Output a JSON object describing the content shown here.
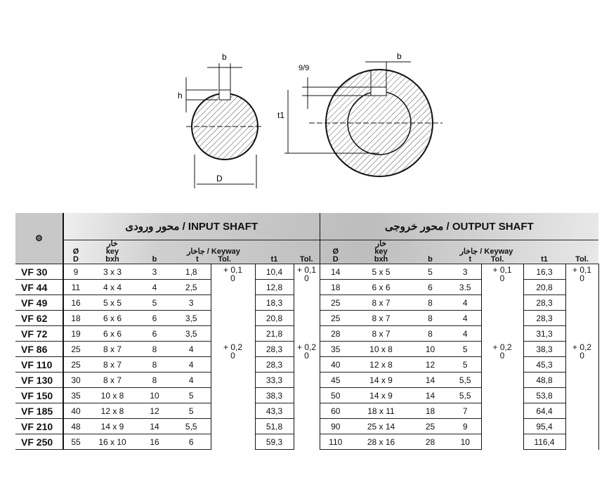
{
  "drawing": {
    "labels": {
      "b_in": "b",
      "h": "h",
      "D": "D",
      "t1": "t1",
      "b_out": "b",
      "t_out": "9/9"
    }
  },
  "input_shaft": {
    "title": "محور ورودی / INPUT SHAFT",
    "keyway": "جاخار / Keyway",
    "col_d": [
      "Ø",
      "D"
    ],
    "col_key": [
      "خار",
      "key",
      "bxh"
    ],
    "col_b": "b",
    "col_t": "t",
    "col_tol": "Tol.",
    "col_t1": "t1",
    "col_tol2": "Tol.",
    "tol_a": [
      "+ 0,1",
      "0"
    ],
    "tol_b": [
      "+ 0,2",
      "0"
    ]
  },
  "output_shaft": {
    "title": "محور خروجی / OUTPUT SHAFT",
    "keyway": "جاخار / Keyway",
    "col_d": [
      "Ø",
      "D"
    ],
    "col_key": [
      "خار",
      "key",
      "bxh"
    ],
    "col_b": "b",
    "col_t": "t",
    "col_tol": "Tol.",
    "col_t1": "t1",
    "col_tol2": "Tol.",
    "tol_a": [
      "+ 0,1",
      "0"
    ],
    "tol_b": [
      "+ 0,2",
      "0"
    ]
  },
  "rows": [
    {
      "model": "VF 30",
      "in": [
        "9",
        "3 x 3",
        "3",
        "1,8",
        "10,4"
      ],
      "out": [
        "14",
        "5 x 5",
        "5",
        "3",
        "16,3"
      ]
    },
    {
      "model": "VF 44",
      "in": [
        "11",
        "4 x 4",
        "4",
        "2,5",
        "12,8"
      ],
      "out": [
        "18",
        "6 x 6",
        "6",
        "3.5",
        "20,8"
      ]
    },
    {
      "model": "VF 49",
      "in": [
        "16",
        "5 x 5",
        "5",
        "3",
        "18,3"
      ],
      "out": [
        "25",
        "8 x 7",
        "8",
        "4",
        "28,3"
      ]
    },
    {
      "model": "VF 62",
      "in": [
        "18",
        "6 x 6",
        "6",
        "3,5",
        "20,8"
      ],
      "out": [
        "25",
        "8 x 7",
        "8",
        "4",
        "28,3"
      ]
    },
    {
      "model": "VF 72",
      "in": [
        "19",
        "6 x 6",
        "6",
        "3,5",
        "21,8"
      ],
      "out": [
        "28",
        "8 x 7",
        "8",
        "4",
        "31,3"
      ]
    },
    {
      "model": "VF 86",
      "in": [
        "25",
        "8 x 7",
        "8",
        "4",
        "28,3"
      ],
      "out": [
        "35",
        "10 x 8",
        "10",
        "5",
        "38,3"
      ]
    },
    {
      "model": "VF 110",
      "in": [
        "25",
        "8 x 7",
        "8",
        "4",
        "28,3"
      ],
      "out": [
        "40",
        "12 x 8",
        "12",
        "5",
        "45,3"
      ]
    },
    {
      "model": "VF 130",
      "in": [
        "30",
        "8 x 7",
        "8",
        "4",
        "33,3"
      ],
      "out": [
        "45",
        "14 x 9",
        "14",
        "5,5",
        "48,8"
      ]
    },
    {
      "model": "VF 150",
      "in": [
        "35",
        "10 x 8",
        "10",
        "5",
        "38,3"
      ],
      "out": [
        "50",
        "14 x 9",
        "14",
        "5,5",
        "53,8"
      ]
    },
    {
      "model": "VF 185",
      "in": [
        "40",
        "12 x 8",
        "12",
        "5",
        "43,3"
      ],
      "out": [
        "60",
        "18 x 11",
        "18",
        "7",
        "64,4"
      ]
    },
    {
      "model": "VF 210",
      "in": [
        "48",
        "14 x 9",
        "14",
        "5,5",
        "51,8"
      ],
      "out": [
        "90",
        "25 x 14",
        "25",
        "9",
        "95,4"
      ]
    },
    {
      "model": "VF 250",
      "in": [
        "55",
        "16 x 10",
        "16",
        "6",
        "59,3"
      ],
      "out": [
        "110",
        "28 x 16",
        "28",
        "10",
        "116,4"
      ]
    }
  ]
}
